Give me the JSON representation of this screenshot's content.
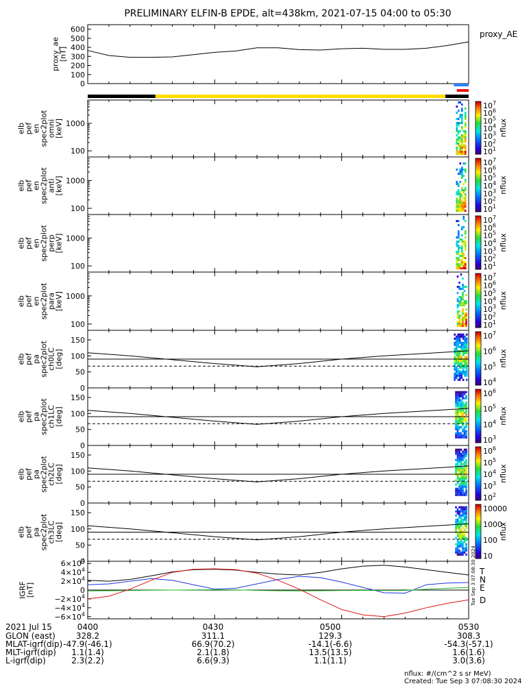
{
  "title": "PRELIMINARY ELFIN-B EPDE, alt=438km, 2021-07-15 04:00 to 05:30",
  "colors": {
    "black": "#000000",
    "yellow": "#ffdd00",
    "blue": "#2a7fff",
    "red": "#ee1111",
    "grf_t": "#000000",
    "grf_n": "#1a33dd",
    "grf_e": "#22bb22",
    "grf_d": "#dd1111"
  },
  "chart_data": [
    {
      "id": "proxy_ae",
      "type": "line",
      "ylabel": "proxy_ae\n[nT]",
      "legend": "proxy_AE",
      "ylim": [
        0,
        650
      ],
      "yticks": [
        "600",
        "500",
        "400",
        "300",
        "200",
        "100",
        "0"
      ],
      "ytick_values": [
        600,
        500,
        400,
        300,
        200,
        100,
        0
      ],
      "x_minutes": [
        0,
        5,
        10,
        15,
        20,
        25,
        30,
        35,
        40,
        45,
        50,
        55,
        60,
        65,
        70,
        75,
        80,
        85,
        90
      ],
      "values": [
        365,
        310,
        290,
        290,
        295,
        320,
        345,
        360,
        395,
        395,
        375,
        370,
        385,
        390,
        378,
        378,
        390,
        420,
        460
      ]
    },
    {
      "id": "bars",
      "type": "bar",
      "segments": [
        {
          "start": 0,
          "end": 16,
          "color": "black"
        },
        {
          "start": 16,
          "end": 84.5,
          "color": "yellow"
        },
        {
          "start": 84.5,
          "end": 90,
          "color": "black"
        }
      ],
      "markers": [
        {
          "start": 86.5,
          "end": 90,
          "color": "blue"
        },
        {
          "start": 87.2,
          "end": 90,
          "color": "red"
        }
      ]
    },
    {
      "id": "spec_omni",
      "type": "heatmap",
      "ylabel": "elb\npef\nen\nspec2plot\nomni\n[keV]",
      "yticks": [
        "1000",
        "100"
      ],
      "cbar_ticks": [
        "10^7",
        "10^6",
        "10^5",
        "10^4",
        "10^3",
        "10^2",
        "10^1"
      ],
      "cbar_label": "nflux",
      "activity": {
        "start": 87.0,
        "end": 89.6
      }
    },
    {
      "id": "spec_anti",
      "type": "heatmap",
      "ylabel": "elb\npef\nen\nspec2plot\nanti\n[keV]",
      "yticks": [
        "1000",
        "100"
      ],
      "cbar_ticks": [
        "10^7",
        "10^6",
        "10^5",
        "10^4",
        "10^3",
        "10^2",
        "10^1"
      ],
      "cbar_label": "nflux",
      "activity": {
        "start": 87.0,
        "end": 89.6
      }
    },
    {
      "id": "spec_perp",
      "type": "heatmap",
      "ylabel": "elb\npef\nen\nspec2plot\nperp\n[keV]",
      "yticks": [
        "1000",
        "100"
      ],
      "cbar_ticks": [
        "10^7",
        "10^6",
        "10^5",
        "10^4",
        "10^3",
        "10^2",
        "10^1"
      ],
      "cbar_label": "nflux",
      "activity": {
        "start": 87.0,
        "end": 89.6
      }
    },
    {
      "id": "spec_para",
      "type": "heatmap",
      "ylabel": "elb\npef\nen\nspec2plot\npara\n[keV]",
      "yticks": [
        "1000",
        "100"
      ],
      "cbar_ticks": [
        "10^7",
        "10^6",
        "10^5",
        "10^4",
        "10^3",
        "10^2",
        "10^1"
      ],
      "cbar_label": "nflux",
      "activity": {
        "start": 87.2,
        "end": 89.6
      }
    },
    {
      "id": "pa_ch0",
      "type": "heatmap",
      "ylabel": "elb\npef\npa\nspec2plot\nch0LC\n[deg]",
      "ylim": [
        0,
        180
      ],
      "yticks": [
        "150",
        "100",
        "50",
        "0"
      ],
      "ytick_values": [
        150,
        100,
        50,
        0
      ],
      "cbar_ticks": [
        "10^7",
        "10^6",
        "10^5",
        "10^4"
      ],
      "cbar_label": "nflux",
      "activity": {
        "start": 86.5,
        "end": 89.8
      },
      "lc_minutes": [
        0,
        10,
        20,
        30,
        40,
        50,
        60,
        70,
        80,
        90
      ],
      "lc_values": [
        110,
        100,
        88,
        76,
        66,
        76,
        90,
        100,
        108,
        116
      ],
      "lines": {
        "solid": 90,
        "dashed": 68
      }
    },
    {
      "id": "pa_ch1",
      "type": "heatmap",
      "ylabel": "elb\npef\npa\nspec2plot\nch1LC\n[deg]",
      "ylim": [
        0,
        180
      ],
      "yticks": [
        "150",
        "100",
        "50",
        "0"
      ],
      "ytick_values": [
        150,
        100,
        50,
        0
      ],
      "cbar_ticks": [
        "10^6",
        "10^5",
        "10^4",
        "10^3"
      ],
      "cbar_label": "nflux",
      "activity": {
        "start": 86.8,
        "end": 89.6
      },
      "lc_minutes": [
        0,
        10,
        20,
        30,
        40,
        50,
        60,
        70,
        80,
        90
      ],
      "lc_values": [
        110,
        100,
        88,
        76,
        66,
        76,
        90,
        100,
        108,
        116
      ],
      "lines": {
        "solid": 90,
        "dashed": 68
      }
    },
    {
      "id": "pa_ch2",
      "type": "heatmap",
      "ylabel": "elb\npef\npa\nspec2plot\nch2LC\n[deg]",
      "ylim": [
        0,
        180
      ],
      "yticks": [
        "150",
        "100",
        "50",
        "0"
      ],
      "ytick_values": [
        150,
        100,
        50,
        0
      ],
      "cbar_ticks": [
        "10^6",
        "10^5",
        "10^4",
        "10^3",
        "10^2"
      ],
      "cbar_label": "nflux",
      "activity": {
        "start": 86.8,
        "end": 89.6
      },
      "lc_minutes": [
        0,
        10,
        20,
        30,
        40,
        50,
        60,
        70,
        80,
        90
      ],
      "lc_values": [
        110,
        100,
        88,
        76,
        66,
        76,
        90,
        100,
        108,
        116
      ],
      "lines": {
        "solid": 90,
        "dashed": 68
      }
    },
    {
      "id": "pa_ch3",
      "type": "heatmap",
      "ylabel": "elb\npef\npa\nspec2plot\nch3LC\n[deg]",
      "ylim": [
        0,
        180
      ],
      "yticks": [
        "150",
        "100",
        "50",
        "0"
      ],
      "ytick_values": [
        150,
        100,
        50,
        0
      ],
      "cbar_ticks": [
        "10000",
        "1000",
        "100",
        "10"
      ],
      "cbar_label": "nflux",
      "activity": {
        "start": 86.8,
        "end": 89.6
      },
      "lc_minutes": [
        0,
        10,
        20,
        30,
        40,
        50,
        60,
        70,
        80,
        90
      ],
      "lc_values": [
        110,
        100,
        88,
        76,
        66,
        76,
        90,
        100,
        108,
        116
      ],
      "lines": {
        "solid": 90,
        "dashed": 68
      }
    },
    {
      "id": "igrf",
      "type": "line",
      "ylabel": "IGRF\n[nT]",
      "ylim": [
        -65000,
        65000
      ],
      "yticks": [
        "6×10^4",
        "4×10^4",
        "2×10^4",
        "0",
        "−2×10^4",
        "−4×10^4",
        "−6×10^4"
      ],
      "ytick_values": [
        60000,
        40000,
        20000,
        0,
        -20000,
        -40000,
        -60000
      ],
      "legend": [
        "T",
        "N",
        "E",
        "D"
      ],
      "x_minutes": [
        0,
        5,
        10,
        15,
        20,
        25,
        30,
        35,
        40,
        45,
        50,
        55,
        60,
        65,
        70,
        75,
        80,
        85,
        90
      ],
      "series": [
        {
          "name": "T",
          "values": [
            22000,
            20000,
            24000,
            32000,
            41000,
            46000,
            47000,
            45000,
            40000,
            36000,
            34000,
            40000,
            48000,
            54000,
            56000,
            52000,
            46000,
            40000,
            34000
          ]
        },
        {
          "name": "N",
          "values": [
            12000,
            14000,
            20000,
            26000,
            22000,
            12000,
            2000,
            4000,
            14000,
            24000,
            31000,
            28000,
            18000,
            6000,
            -6000,
            -7000,
            12000,
            16000,
            17000
          ]
        },
        {
          "name": "E",
          "values": [
            -2000,
            -1500,
            -1000,
            -500,
            0,
            500,
            800,
            500,
            -800,
            -1500,
            -1800,
            -1500,
            -1000,
            -800,
            -900,
            -1000,
            2000,
            4000,
            6000
          ]
        },
        {
          "name": "D",
          "values": [
            -20000,
            -14000,
            2000,
            22000,
            40000,
            47000,
            48000,
            46000,
            38000,
            22000,
            2000,
            -22000,
            -44000,
            -56000,
            -60000,
            -52000,
            -40000,
            -30000,
            -22000
          ]
        }
      ]
    }
  ],
  "time_axis": {
    "labels": [
      "0400",
      "0430",
      "0500",
      "0530"
    ],
    "minutes": [
      0,
      30,
      60,
      90
    ],
    "tick_minutes": [
      0,
      5,
      10,
      15,
      20,
      25,
      30,
      35,
      40,
      45,
      50,
      55,
      60,
      65,
      70,
      75,
      80,
      85,
      90
    ]
  },
  "footer": {
    "date": "2021 Jul 15",
    "rows": [
      {
        "label": "GLON (east)",
        "values": [
          "328.2",
          "311.1",
          "129.3",
          "308.3"
        ]
      },
      {
        "label": "MLAT-igrf(dip)",
        "values": [
          "-47.9(-46.1)",
          "66.9(70.2)",
          "-14.1(-6.6)",
          "-54.3(-57.1)"
        ]
      },
      {
        "label": "MLT-igrf(dip)",
        "values": [
          "1.1(1.4)",
          "2.1(1.8)",
          "13.5(13.5)",
          "1.6(1.6)"
        ]
      },
      {
        "label": "L-igrf(dip)",
        "values": [
          "2.3(2.2)",
          "6.6(9.3)",
          "1.1(1.1)",
          "3.0(3.6)"
        ]
      }
    ],
    "units_note": "nflux: #/(cm^2 s sr MeV)",
    "created": "Created: Tue Sep  3 07:08:30 2024",
    "side_stamp": "Tue Sep  3 07:08:30 2024"
  }
}
